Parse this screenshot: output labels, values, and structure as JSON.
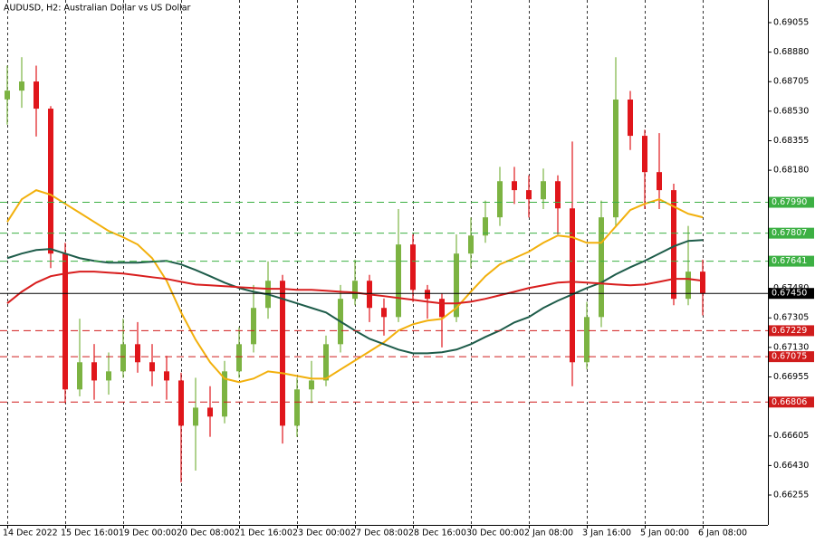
{
  "chart_data": {
    "type": "candlestick",
    "title": "AUDUSD, H2:  Australian Dollar vs US Dollar",
    "ylim": [
      0.66078,
      0.69189
    ],
    "yticks": [
      {
        "value": 0.69055,
        "label": "0.69055"
      },
      {
        "value": 0.6888,
        "label": "0.68880"
      },
      {
        "value": 0.68705,
        "label": "0.68705"
      },
      {
        "value": 0.6853,
        "label": "0.68530"
      },
      {
        "value": 0.68355,
        "label": "0.68355"
      },
      {
        "value": 0.6818,
        "label": "0.68180"
      },
      {
        "value": 0.6748,
        "label": "0.67480"
      },
      {
        "value": 0.67305,
        "label": "0.67305"
      },
      {
        "value": 0.6713,
        "label": "0.67130"
      },
      {
        "value": 0.66955,
        "label": "0.66955"
      },
      {
        "value": 0.66605,
        "label": "0.66605"
      },
      {
        "value": 0.6643,
        "label": "0.66430"
      },
      {
        "value": 0.66255,
        "label": "0.66255"
      }
    ],
    "grid": true,
    "up_color": "#7cb342",
    "down_color": "#e0161b",
    "categories": [
      "14 Dec 2022",
      null,
      null,
      null,
      "15 Dec 16:00",
      null,
      null,
      null,
      "19 Dec 00:00",
      null,
      null,
      null,
      "20 Dec 08:00",
      null,
      null,
      null,
      "21 Dec 16:00",
      null,
      null,
      null,
      "23 Dec 00:00",
      null,
      null,
      null,
      "27 Dec 08:00",
      null,
      null,
      null,
      "28 Dec 16:00",
      null,
      null,
      null,
      "30 Dec 00:00",
      null,
      null,
      null,
      "2 Jan 08:00",
      null,
      null,
      null,
      "3 Jan 16:00",
      null,
      null,
      null,
      "5 Jan 00:00",
      null,
      null,
      null,
      "6 Jan 08:00"
    ],
    "candles": [
      [
        0.686,
        0.688,
        0.6845,
        0.68652
      ],
      [
        0.68652,
        0.6885,
        0.6855,
        0.68706
      ],
      [
        0.68706,
        0.688,
        0.6838,
        0.68545
      ],
      [
        0.68545,
        0.6856,
        0.676,
        0.67686
      ],
      [
        0.67686,
        0.6775,
        0.668,
        0.66881
      ],
      [
        0.66881,
        0.673,
        0.6684,
        0.67042
      ],
      [
        0.67042,
        0.6715,
        0.6682,
        0.66934
      ],
      [
        0.66934,
        0.671,
        0.6685,
        0.66988
      ],
      [
        0.66988,
        0.673,
        0.6695,
        0.67149
      ],
      [
        0.67149,
        0.6728,
        0.6698,
        0.67042
      ],
      [
        0.67042,
        0.6715,
        0.669,
        0.66988
      ],
      [
        0.66988,
        0.6708,
        0.6682,
        0.66934
      ],
      [
        0.66934,
        0.6698,
        0.6633,
        0.66666
      ],
      [
        0.66666,
        0.6695,
        0.664,
        0.66773
      ],
      [
        0.66773,
        0.669,
        0.666,
        0.6672
      ],
      [
        0.6672,
        0.6705,
        0.6668,
        0.66988
      ],
      [
        0.66988,
        0.6725,
        0.6695,
        0.67149
      ],
      [
        0.67149,
        0.675,
        0.671,
        0.67364
      ],
      [
        0.67364,
        0.6764,
        0.673,
        0.67525
      ],
      [
        0.67525,
        0.6756,
        0.6656,
        0.66666
      ],
      [
        0.66666,
        0.6695,
        0.666,
        0.66881
      ],
      [
        0.66881,
        0.6705,
        0.668,
        0.66934
      ],
      [
        0.66934,
        0.672,
        0.669,
        0.67149
      ],
      [
        0.67149,
        0.675,
        0.671,
        0.67418
      ],
      [
        0.67418,
        0.6765,
        0.6738,
        0.67525
      ],
      [
        0.67525,
        0.6756,
        0.6728,
        0.67364
      ],
      [
        0.67364,
        0.6742,
        0.672,
        0.6731
      ],
      [
        0.6731,
        0.6795,
        0.6728,
        0.6774
      ],
      [
        0.6774,
        0.678,
        0.674,
        0.67471
      ],
      [
        0.67471,
        0.675,
        0.673,
        0.67418
      ],
      [
        0.67418,
        0.6745,
        0.6713,
        0.6731
      ],
      [
        0.6731,
        0.678,
        0.6728,
        0.67686
      ],
      [
        0.67686,
        0.679,
        0.676,
        0.67793
      ],
      [
        0.67793,
        0.68,
        0.6775,
        0.67901
      ],
      [
        0.67901,
        0.682,
        0.6785,
        0.68115
      ],
      [
        0.68115,
        0.682,
        0.6798,
        0.68062
      ],
      [
        0.68062,
        0.6815,
        0.679,
        0.68008
      ],
      [
        0.68008,
        0.6819,
        0.6795,
        0.68115
      ],
      [
        0.68115,
        0.6815,
        0.678,
        0.67954
      ],
      [
        0.67954,
        0.6835,
        0.669,
        0.67042
      ],
      [
        0.67042,
        0.674,
        0.67,
        0.6731
      ],
      [
        0.6731,
        0.68,
        0.6725,
        0.67901
      ],
      [
        0.67901,
        0.6885,
        0.6785,
        0.68599
      ],
      [
        0.68599,
        0.6865,
        0.683,
        0.68384
      ],
      [
        0.68384,
        0.6842,
        0.6795,
        0.68169
      ],
      [
        0.68169,
        0.684,
        0.6795,
        0.68062
      ],
      [
        0.68062,
        0.681,
        0.6738,
        0.67418
      ],
      [
        0.67418,
        0.6785,
        0.6738,
        0.67579
      ],
      [
        0.67579,
        0.6765,
        0.6732,
        0.6745
      ]
    ],
    "moving_averages": [
      {
        "color": "#f2b00c",
        "values": [
          0.67874,
          0.68008,
          0.68062,
          0.68035,
          0.67981,
          0.67928,
          0.67874,
          0.6782,
          0.67783,
          0.6774,
          0.67659,
          0.67525,
          0.67337,
          0.67176,
          0.67042,
          0.66945,
          0.66924,
          0.66945,
          0.66988,
          0.66977,
          0.66961,
          0.66945,
          0.66945,
          0.66999,
          0.67052,
          0.67106,
          0.6716,
          0.6723,
          0.67267,
          0.67289,
          0.67299,
          0.67364,
          0.6746,
          0.67552,
          0.67622,
          0.67659,
          0.67697,
          0.6775,
          0.67793,
          0.67783,
          0.6775,
          0.6775,
          0.67847,
          0.67944,
          0.67981,
          0.68008,
          0.67965,
          0.67922,
          0.67901
        ]
      },
      {
        "color": "#1e5c4a",
        "values": [
          0.67659,
          0.67686,
          0.67707,
          0.67713,
          0.67686,
          0.67659,
          0.67643,
          0.67632,
          0.67632,
          0.67632,
          0.67638,
          0.67643,
          0.67622,
          0.67589,
          0.67552,
          0.67514,
          0.67482,
          0.6746,
          0.67444,
          0.67418,
          0.67391,
          0.67364,
          0.67337,
          0.67283,
          0.6723,
          0.67181,
          0.67149,
          0.67117,
          0.67095,
          0.67095,
          0.67101,
          0.67117,
          0.67149,
          0.67192,
          0.6723,
          0.67278,
          0.6731,
          0.67364,
          0.67407,
          0.67444,
          0.67482,
          0.67514,
          0.67563,
          0.67605,
          0.67643,
          0.67686,
          0.67729,
          0.67761,
          0.67766
        ]
      },
      {
        "color": "#d81e1e",
        "values": [
          0.67391,
          0.6746,
          0.67514,
          0.67552,
          0.67568,
          0.67579,
          0.67579,
          0.67573,
          0.67568,
          0.67557,
          0.67546,
          0.67536,
          0.67519,
          0.67503,
          0.67498,
          0.67493,
          0.67487,
          0.67482,
          0.67477,
          0.67477,
          0.67471,
          0.67471,
          0.67466,
          0.6746,
          0.67455,
          0.67444,
          0.67434,
          0.67423,
          0.67412,
          0.67401,
          0.67391,
          0.67391,
          0.67401,
          0.67418,
          0.67439,
          0.6746,
          0.67482,
          0.67498,
          0.67514,
          0.67519,
          0.67514,
          0.67509,
          0.67503,
          0.67498,
          0.67503,
          0.67519,
          0.67536,
          0.67536,
          0.67525
        ]
      }
    ],
    "levels": [
      {
        "value": 0.6799,
        "label": "0.67990",
        "color": "#3cb043"
      },
      {
        "value": 0.67807,
        "label": "0.67807",
        "color": "#3cb043"
      },
      {
        "value": 0.67641,
        "label": "0.67641",
        "color": "#3cb043"
      },
      {
        "value": 0.67229,
        "label": "0.67229",
        "color": "#d01c1c"
      },
      {
        "value": 0.67075,
        "label": "0.67075",
        "color": "#d01c1c"
      },
      {
        "value": 0.66806,
        "label": "0.66806",
        "color": "#d01c1c"
      }
    ],
    "current_price": {
      "value": 0.6745,
      "label": "0.67450",
      "color": "#000000"
    }
  }
}
